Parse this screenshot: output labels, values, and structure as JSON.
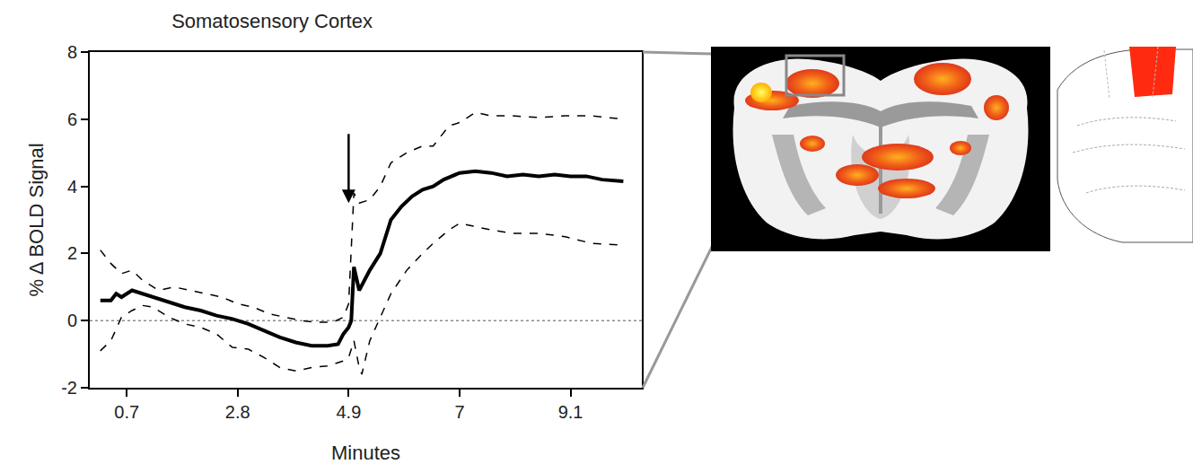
{
  "chart_data": {
    "type": "line",
    "title": "Somatosensory Cortex",
    "x_label": "Minutes",
    "y_label": "% Δ BOLD Signal",
    "xlim": [
      0,
      10.45
    ],
    "ylim": [
      -2,
      8
    ],
    "xticks": [
      0.7,
      2.8,
      4.9,
      7,
      9.1
    ],
    "yticks": [
      -2,
      0,
      2,
      4,
      6,
      8
    ],
    "grid": false,
    "series": [
      {
        "color": "#000000",
        "line_style": "solid",
        "x": [
          0.2,
          0.4,
          0.5,
          0.6,
          0.8,
          1.0,
          1.2,
          1.5,
          1.8,
          2.1,
          2.4,
          2.7,
          3.0,
          3.3,
          3.6,
          3.9,
          4.2,
          4.5,
          4.7,
          4.8,
          4.9,
          4.95,
          5.0,
          5.1,
          5.3,
          5.5,
          5.7,
          5.9,
          6.1,
          6.3,
          6.5,
          6.7,
          7.0,
          7.3,
          7.6,
          7.9,
          8.2,
          8.5,
          8.8,
          9.1,
          9.4,
          9.7,
          10.0,
          10.1
        ],
        "values": [
          0.6,
          0.6,
          0.8,
          0.7,
          0.9,
          0.8,
          0.7,
          0.55,
          0.4,
          0.3,
          0.15,
          0.05,
          -0.1,
          -0.3,
          -0.5,
          -0.65,
          -0.75,
          -0.75,
          -0.7,
          -0.4,
          -0.2,
          0,
          1.6,
          0.9,
          1.5,
          2.0,
          3.0,
          3.4,
          3.7,
          3.9,
          4.0,
          4.2,
          4.4,
          4.45,
          4.4,
          4.3,
          4.35,
          4.3,
          4.35,
          4.3,
          4.3,
          4.2,
          4.15,
          4.15
        ]
      },
      {
        "color": "#000000",
        "line_style": "dashed",
        "x": [
          0.2,
          0.4,
          0.6,
          0.8,
          1.0,
          1.3,
          1.6,
          1.9,
          2.2,
          2.5,
          2.8,
          3.1,
          3.4,
          3.7,
          4.0,
          4.3,
          4.6,
          4.8,
          4.9,
          5.0,
          5.1,
          5.3,
          5.5,
          5.7,
          6.0,
          6.3,
          6.5,
          6.8,
          7.0,
          7.3,
          7.6,
          8.0,
          8.5,
          9.0,
          9.5,
          10.1
        ],
        "values": [
          2.1,
          1.7,
          1.4,
          1.5,
          1.2,
          0.9,
          1.0,
          0.9,
          0.8,
          0.7,
          0.5,
          0.4,
          0.2,
          0.1,
          0.0,
          -0.05,
          -0.05,
          0.1,
          0.5,
          3.8,
          3.5,
          3.6,
          4.0,
          4.7,
          5.0,
          5.2,
          5.2,
          5.8,
          5.9,
          6.2,
          6.1,
          6.1,
          6.05,
          6.1,
          6.1,
          6.0
        ]
      },
      {
        "color": "#000000",
        "line_style": "dashed",
        "x": [
          0.2,
          0.4,
          0.6,
          0.8,
          1.0,
          1.2,
          1.5,
          1.8,
          2.1,
          2.4,
          2.7,
          3.0,
          3.3,
          3.6,
          3.9,
          4.2,
          4.5,
          4.8,
          4.9,
          5.0,
          5.1,
          5.15,
          5.3,
          5.5,
          5.7,
          6.0,
          6.3,
          6.5,
          6.8,
          7.0,
          7.3,
          7.6,
          8.0,
          8.5,
          9.0,
          9.5,
          10.1
        ],
        "values": [
          -0.9,
          -0.6,
          0.1,
          0.3,
          0.45,
          0.4,
          0.1,
          -0.1,
          -0.2,
          -0.4,
          -0.8,
          -0.85,
          -1.1,
          -1.4,
          -1.5,
          -1.4,
          -1.35,
          -1.2,
          -1.1,
          -0.6,
          -1.4,
          -1.6,
          -0.6,
          0.1,
          0.8,
          1.5,
          2.0,
          2.3,
          2.7,
          2.9,
          2.8,
          2.7,
          2.6,
          2.6,
          2.5,
          2.3,
          2.25
        ]
      }
    ],
    "reference_lines": [
      {
        "y": 0,
        "line_style": "dotted"
      }
    ],
    "annotations": [
      {
        "type": "arrow",
        "x": 4.9,
        "y": 3.5,
        "y_tail": 5.6
      }
    ]
  }
}
